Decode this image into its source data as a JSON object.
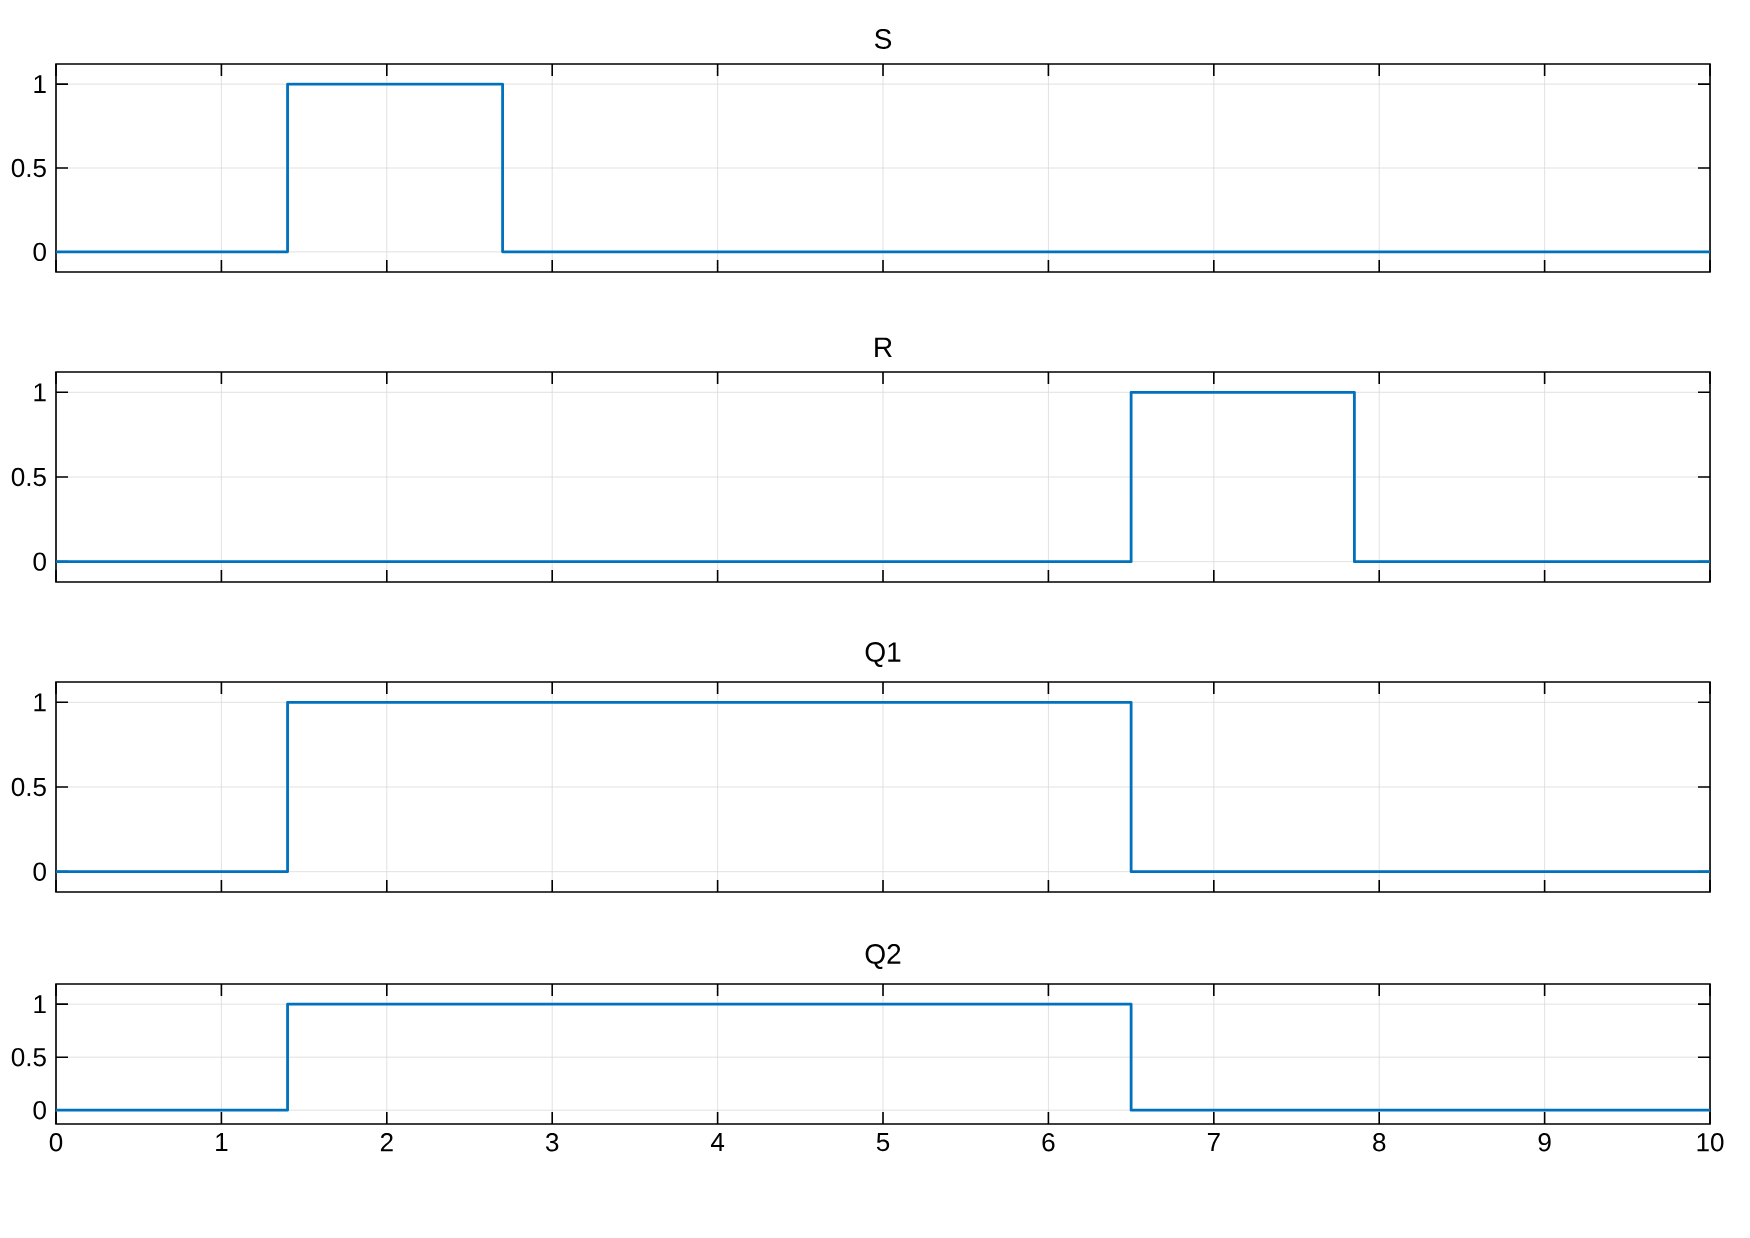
{
  "chart_data": [
    {
      "type": "step",
      "title": "S",
      "x": [
        0,
        1.4,
        2.7,
        10
      ],
      "series": [
        {
          "color": "#0072bd",
          "values": [
            0,
            1,
            0,
            0
          ]
        }
      ],
      "xlim": [
        0,
        10
      ],
      "ylim": [
        -0.12,
        1.12
      ],
      "xticks": [
        0,
        1,
        2,
        3,
        4,
        5,
        6,
        7,
        8,
        9,
        10
      ],
      "yticks": [
        0,
        0.5,
        1
      ],
      "grid": true,
      "tick_labels": "y"
    },
    {
      "type": "step",
      "title": "R",
      "x": [
        0,
        6.5,
        7.85,
        10
      ],
      "series": [
        {
          "color": "#0072bd",
          "values": [
            0,
            1,
            0,
            0
          ]
        }
      ],
      "xlim": [
        0,
        10
      ],
      "ylim": [
        -0.12,
        1.12
      ],
      "xticks": [
        0,
        1,
        2,
        3,
        4,
        5,
        6,
        7,
        8,
        9,
        10
      ],
      "yticks": [
        0,
        0.5,
        1
      ],
      "grid": true,
      "tick_labels": "y"
    },
    {
      "type": "step",
      "title": "Q1",
      "x": [
        0,
        1.4,
        6.5,
        10
      ],
      "series": [
        {
          "color": "#0072bd",
          "values": [
            0,
            1,
            0,
            0
          ]
        }
      ],
      "xlim": [
        0,
        10
      ],
      "ylim": [
        -0.12,
        1.12
      ],
      "xticks": [
        0,
        1,
        2,
        3,
        4,
        5,
        6,
        7,
        8,
        9,
        10
      ],
      "yticks": [
        0,
        0.5,
        1
      ],
      "grid": true,
      "tick_labels": "y"
    },
    {
      "type": "step",
      "title": "Q2",
      "x": [
        0,
        1.4,
        6.5,
        10
      ],
      "series": [
        {
          "color": "#0072bd",
          "values": [
            0,
            1,
            0,
            0
          ]
        }
      ],
      "xlim": [
        0,
        10
      ],
      "ylim": [
        -0.13,
        1.19
      ],
      "xticks": [
        0,
        1,
        2,
        3,
        4,
        5,
        6,
        7,
        8,
        9,
        10
      ],
      "yticks": [
        0,
        0.5,
        1
      ],
      "grid": true
    }
  ]
}
